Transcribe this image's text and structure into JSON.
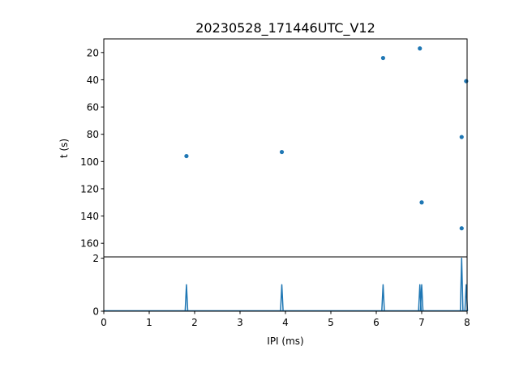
{
  "chart_data": [
    {
      "type": "scatter",
      "title": "20230528_171446UTC_V12",
      "xlabel": "",
      "ylabel": "t (s)",
      "xlim": [
        0,
        8
      ],
      "ylim": [
        170,
        10
      ],
      "y_inverted": true,
      "grid": false,
      "color": "#1f77b4",
      "y_ticks": [
        20,
        40,
        60,
        80,
        100,
        120,
        140,
        160
      ],
      "points": [
        {
          "x": 1.82,
          "y": 96
        },
        {
          "x": 3.92,
          "y": 93
        },
        {
          "x": 6.15,
          "y": 24
        },
        {
          "x": 6.96,
          "y": 17
        },
        {
          "x": 7.0,
          "y": 130
        },
        {
          "x": 7.88,
          "y": 82
        },
        {
          "x": 7.88,
          "y": 149
        },
        {
          "x": 7.98,
          "y": 41
        }
      ]
    },
    {
      "type": "line",
      "xlabel": "IPI (ms)",
      "ylabel": "",
      "xlim": [
        0,
        8
      ],
      "ylim": [
        0,
        2.05
      ],
      "grid": false,
      "color": "#1f77b4",
      "x_ticks": [
        0,
        1,
        2,
        3,
        4,
        5,
        6,
        7,
        8
      ],
      "y_ticks": [
        0,
        2
      ],
      "spikes": [
        {
          "x": 1.82,
          "y": 1
        },
        {
          "x": 3.92,
          "y": 1
        },
        {
          "x": 6.15,
          "y": 1
        },
        {
          "x": 6.96,
          "y": 1
        },
        {
          "x": 7.0,
          "y": 1
        },
        {
          "x": 7.88,
          "y": 2
        },
        {
          "x": 7.98,
          "y": 1
        }
      ]
    }
  ]
}
